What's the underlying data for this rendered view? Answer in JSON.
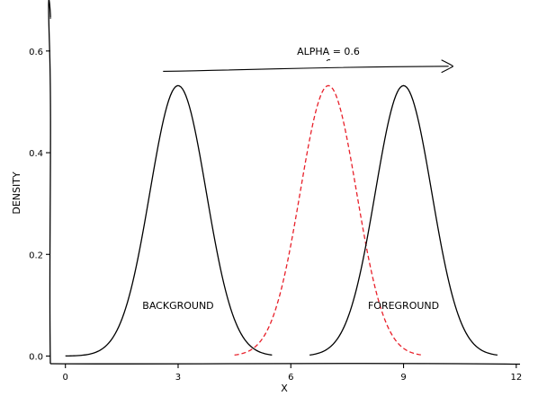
{
  "chart_data": {
    "type": "line",
    "title": "",
    "xlabel": "X",
    "ylabel": "DENSITY",
    "xlim": [
      -0.4,
      12.1
    ],
    "ylim": [
      -0.015,
      0.665
    ],
    "x_ticks": [
      0,
      3,
      6,
      9,
      12
    ],
    "x_tick_labels": [
      "0",
      "3",
      "6",
      "9",
      "12"
    ],
    "y_ticks": [
      0.0,
      0.2,
      0.4,
      0.6
    ],
    "y_tick_labels": [
      "0.0",
      "0.2",
      "0.4",
      "0.6"
    ],
    "grid": false,
    "legend": "none",
    "series": [
      {
        "style": "solid",
        "color": "#000000",
        "mean": 3,
        "sd": 0.75,
        "x_range": [
          0,
          5.5
        ]
      },
      {
        "style": "dashed",
        "color": "#e8202a",
        "mean": 7,
        "sd": 0.75,
        "x_range": [
          4.5,
          9.5
        ]
      },
      {
        "style": "solid",
        "color": "#000000",
        "mean": 9,
        "sd": 0.75,
        "x_range": [
          6.5,
          11.5
        ]
      }
    ],
    "annotations": [
      {
        "text": "BACKGROUND",
        "x": 3,
        "y": 0.1
      },
      {
        "text": "FOREGROUND",
        "x": 9,
        "y": 0.1
      },
      {
        "text": "ALPHA = 0.6",
        "x": 7,
        "y": 0.6,
        "arrow_from": [
          2.6,
          0.56
        ],
        "arrow_to": [
          10.2,
          0.57
        ]
      }
    ]
  }
}
